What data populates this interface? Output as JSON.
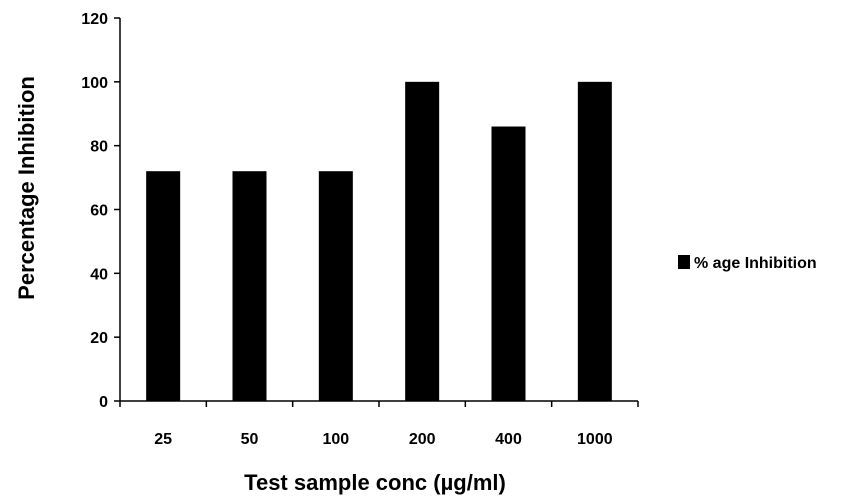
{
  "chart_data": {
    "type": "bar",
    "categories": [
      "25",
      "50",
      "100",
      "200",
      "400",
      "1000"
    ],
    "series": [
      {
        "name": "% age Inhibition",
        "values": [
          72,
          72,
          72,
          100,
          86,
          100
        ],
        "color": "#000000"
      }
    ],
    "title": "",
    "xlabel": "Test sample conc (µg/ml)",
    "ylabel": "Percentage Inhibition",
    "ylim": [
      0,
      120
    ],
    "yticks": [
      "0",
      "20",
      "40",
      "60",
      "80",
      "100",
      "120"
    ],
    "grid": false,
    "legend_position": "right"
  }
}
